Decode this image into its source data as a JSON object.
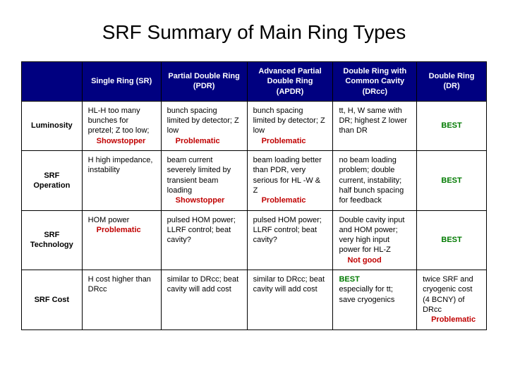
{
  "title": "SRF Summary of Main Ring Types",
  "colors": {
    "header_bg": "#000080",
    "header_fg": "#ffffff",
    "border": "#000000",
    "text": "#000000",
    "emphasis_red": "#c00000",
    "emphasis_green": "#007a00",
    "background": "#ffffff"
  },
  "typography": {
    "title_fontsize_pt": 21,
    "cell_fontsize_pt": 8,
    "font_family": "Arial"
  },
  "table": {
    "layout": {
      "col_widths_pct": [
        13,
        17,
        18.5,
        18.5,
        18,
        15
      ]
    },
    "columns": [
      "",
      "Single Ring (SR)",
      "Partial Double Ring (PDR)",
      "Advanced Partial Double Ring (APDR)",
      "Double Ring with Common Cavity (DRcc)",
      "Double Ring (DR)"
    ],
    "rows": [
      {
        "label": "Luminosity",
        "cells": [
          {
            "main": "HL-H too many bunches for pretzel; Z too low;",
            "em": "Showstopper",
            "em_class": "em"
          },
          {
            "main": "bunch spacing limited by detector; Z low",
            "em": "Problematic",
            "em_class": "em"
          },
          {
            "main": "bunch spacing limited by detector; Z low",
            "em": "Problematic",
            "em_class": "em"
          },
          {
            "main": "tt, H, W same with DR; highest Z lower than DR",
            "em": "",
            "em_class": ""
          },
          {
            "main": "",
            "em": "BEST",
            "em_class": "em-green"
          }
        ]
      },
      {
        "label": "SRF Operation",
        "cells": [
          {
            "main": "H high impedance, instability",
            "em": "",
            "em_class": ""
          },
          {
            "main": "beam current severely limited by transient beam loading",
            "em": "Showstopper",
            "em_class": "em"
          },
          {
            "main": "beam loading better than PDR, very serious for HL -W & Z",
            "em": "Problematic",
            "em_class": "em"
          },
          {
            "main": "no beam loading problem; double current, instability; half bunch spacing for feedback",
            "em": "",
            "em_class": ""
          },
          {
            "main": "",
            "em": "BEST",
            "em_class": "em-green"
          }
        ]
      },
      {
        "label": "SRF Technology",
        "cells": [
          {
            "main": "HOM power",
            "em": "Problematic",
            "em_class": "em"
          },
          {
            "main": "pulsed HOM power; LLRF control; beat cavity?",
            "em": "",
            "em_class": ""
          },
          {
            "main": "pulsed HOM power; LLRF control; beat cavity?",
            "em": "",
            "em_class": ""
          },
          {
            "main": "Double cavity input and HOM power; very high input power for HL-Z",
            "em": "Not good",
            "em_class": "em"
          },
          {
            "main": "",
            "em": "BEST",
            "em_class": "em-green"
          }
        ]
      },
      {
        "label": "SRF Cost",
        "cells": [
          {
            "main": "H cost higher than DRcc",
            "em": "",
            "em_class": ""
          },
          {
            "main": "similar to DRcc; beat cavity will add cost",
            "em": "",
            "em_class": ""
          },
          {
            "main": "similar to DRcc; beat cavity will add cost",
            "em": "",
            "em_class": ""
          },
          {
            "main_pre_em": "BEST",
            "pre_em_class": "em-green",
            "main": "especially for tt; save cryogenics",
            "em": "",
            "em_class": ""
          },
          {
            "main": "twice SRF and cryogenic cost (4 BCNY) of DRcc",
            "em": "Problematic",
            "em_class": "em"
          }
        ]
      }
    ]
  }
}
